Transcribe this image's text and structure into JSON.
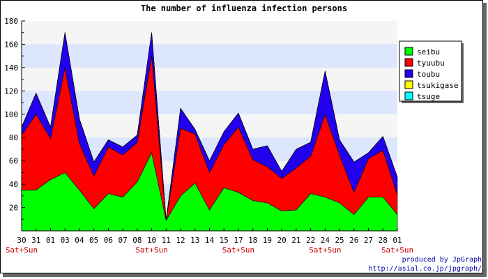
{
  "chart_data": {
    "type": "area",
    "stacked": true,
    "title": "The number of influenza infection persons",
    "categories": [
      "30",
      "31",
      "01",
      "03",
      "04",
      "05",
      "06",
      "07",
      "08",
      "10",
      "11",
      "12",
      "13",
      "14",
      "15",
      "17",
      "18",
      "19",
      "20",
      "21",
      "22",
      "24",
      "25",
      "26",
      "27",
      "28",
      "01"
    ],
    "weekend_labels": [
      "Sat+Sun",
      "",
      "",
      "",
      "",
      "",
      "",
      "",
      "",
      "Sat+Sun",
      "",
      "",
      "",
      "",
      "",
      "Sat+Sun",
      "",
      "",
      "",
      "",
      "",
      "Sat+Sun",
      "",
      "",
      "",
      "",
      "Sat+Sun"
    ],
    "ylim": [
      0,
      180
    ],
    "yticks": [
      20,
      40,
      60,
      80,
      100,
      120,
      140,
      160,
      180
    ],
    "grid": true,
    "legend_position": "top-right",
    "series": [
      {
        "name": "seibu",
        "color": "#00ff00",
        "values": [
          35,
          35,
          44,
          50,
          35,
          19,
          32,
          29,
          42,
          67,
          9,
          30,
          41,
          18,
          37,
          33,
          26,
          24,
          17,
          18,
          32,
          29,
          24,
          14,
          29,
          29,
          14
        ]
      },
      {
        "name": "tyuubu",
        "color": "#ff0000",
        "values": [
          47,
          65,
          35,
          90,
          40,
          28,
          40,
          36,
          34,
          83,
          0,
          58,
          42,
          32,
          37,
          56,
          35,
          31,
          28,
          36,
          32,
          71,
          41,
          19,
          33,
          40,
          17
        ]
      },
      {
        "name": "toubu",
        "color": "#2200ee",
        "values": [
          7,
          18,
          10,
          30,
          21,
          12,
          6,
          7,
          6,
          20,
          0,
          17,
          4,
          10,
          11,
          12,
          9,
          18,
          6,
          16,
          12,
          37,
          13,
          26,
          5,
          12,
          15
        ]
      },
      {
        "name": "tsukigase",
        "color": "#ffff00",
        "values": [
          0,
          0,
          0,
          0,
          0,
          0,
          0,
          0,
          0,
          0,
          0,
          0,
          0,
          0,
          0,
          0,
          0,
          0,
          0,
          0,
          0,
          0,
          0,
          0,
          0,
          0,
          0
        ]
      },
      {
        "name": "tsuge",
        "color": "#00ffff",
        "values": [
          0,
          0,
          0,
          0,
          0,
          0,
          0,
          0,
          0,
          0,
          0,
          0,
          0,
          0,
          0,
          0,
          0,
          0,
          0,
          0,
          0,
          0,
          0,
          0,
          0,
          0,
          0
        ]
      }
    ]
  },
  "credits": {
    "line1": "produced by JpGraph",
    "line2": "http://asial.co.jp/jpgraph/"
  }
}
